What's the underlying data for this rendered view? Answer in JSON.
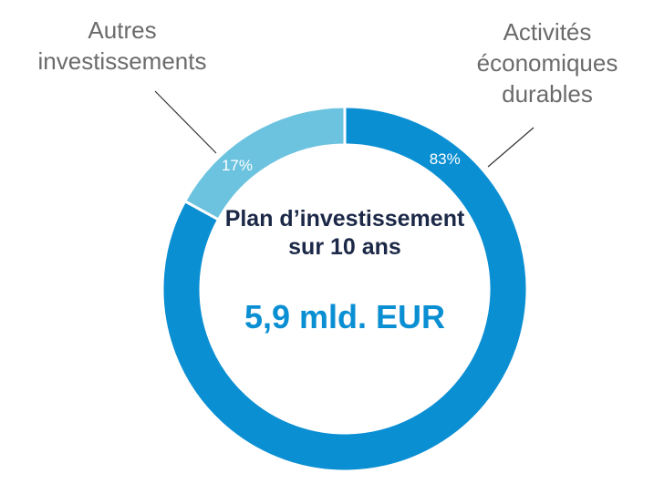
{
  "chart_data": {
    "type": "donut",
    "categories": [
      "Activités économiques durables",
      "Autres investissements"
    ],
    "values": [
      83,
      17
    ],
    "value_labels": [
      "83%",
      "17%"
    ],
    "colors": [
      "#0b8fd3",
      "#6cc3df"
    ],
    "center_title": "Plan d’investissement sur 10 ans",
    "center_value": "5,9 mld. EUR"
  }
}
